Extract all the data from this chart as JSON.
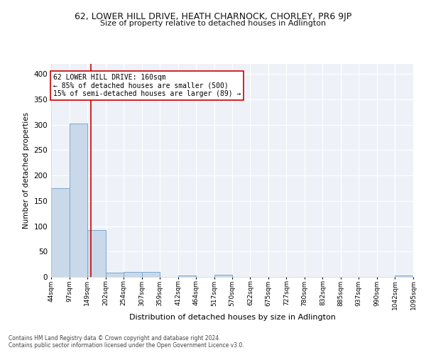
{
  "title": "62, LOWER HILL DRIVE, HEATH CHARNOCK, CHORLEY, PR6 9JP",
  "subtitle": "Size of property relative to detached houses in Adlington",
  "xlabel": "Distribution of detached houses by size in Adlington",
  "ylabel": "Number of detached properties",
  "bin_edges": [
    44,
    97,
    149,
    202,
    254,
    307,
    359,
    412,
    464,
    517,
    570,
    622,
    675,
    727,
    780,
    832,
    885,
    937,
    990,
    1042,
    1095
  ],
  "bin_counts": [
    175,
    303,
    93,
    8,
    10,
    10,
    0,
    3,
    0,
    4,
    0,
    0,
    0,
    0,
    0,
    0,
    0,
    0,
    0,
    3
  ],
  "bar_color": "#c9d9ea",
  "bar_edge_color": "#7aa8cc",
  "vline_x": 160,
  "vline_color": "#cc0000",
  "annotation_text": "62 LOWER HILL DRIVE: 160sqm\n← 85% of detached houses are smaller (500)\n15% of semi-detached houses are larger (89) →",
  "annotation_box_color": "#ffffff",
  "annotation_box_edge": "#cc0000",
  "annotation_fontsize": 7.0,
  "ylim": [
    0,
    420
  ],
  "background_color": "#eef2f8",
  "grid_color": "#ffffff",
  "footer_line1": "Contains HM Land Registry data © Crown copyright and database right 2024.",
  "footer_line2": "Contains public sector information licensed under the Open Government Licence v3.0.",
  "tick_labels": [
    "44sqm",
    "97sqm",
    "149sqm",
    "202sqm",
    "254sqm",
    "307sqm",
    "359sqm",
    "412sqm",
    "464sqm",
    "517sqm",
    "570sqm",
    "622sqm",
    "675sqm",
    "727sqm",
    "780sqm",
    "832sqm",
    "885sqm",
    "937sqm",
    "990sqm",
    "1042sqm",
    "1095sqm"
  ]
}
